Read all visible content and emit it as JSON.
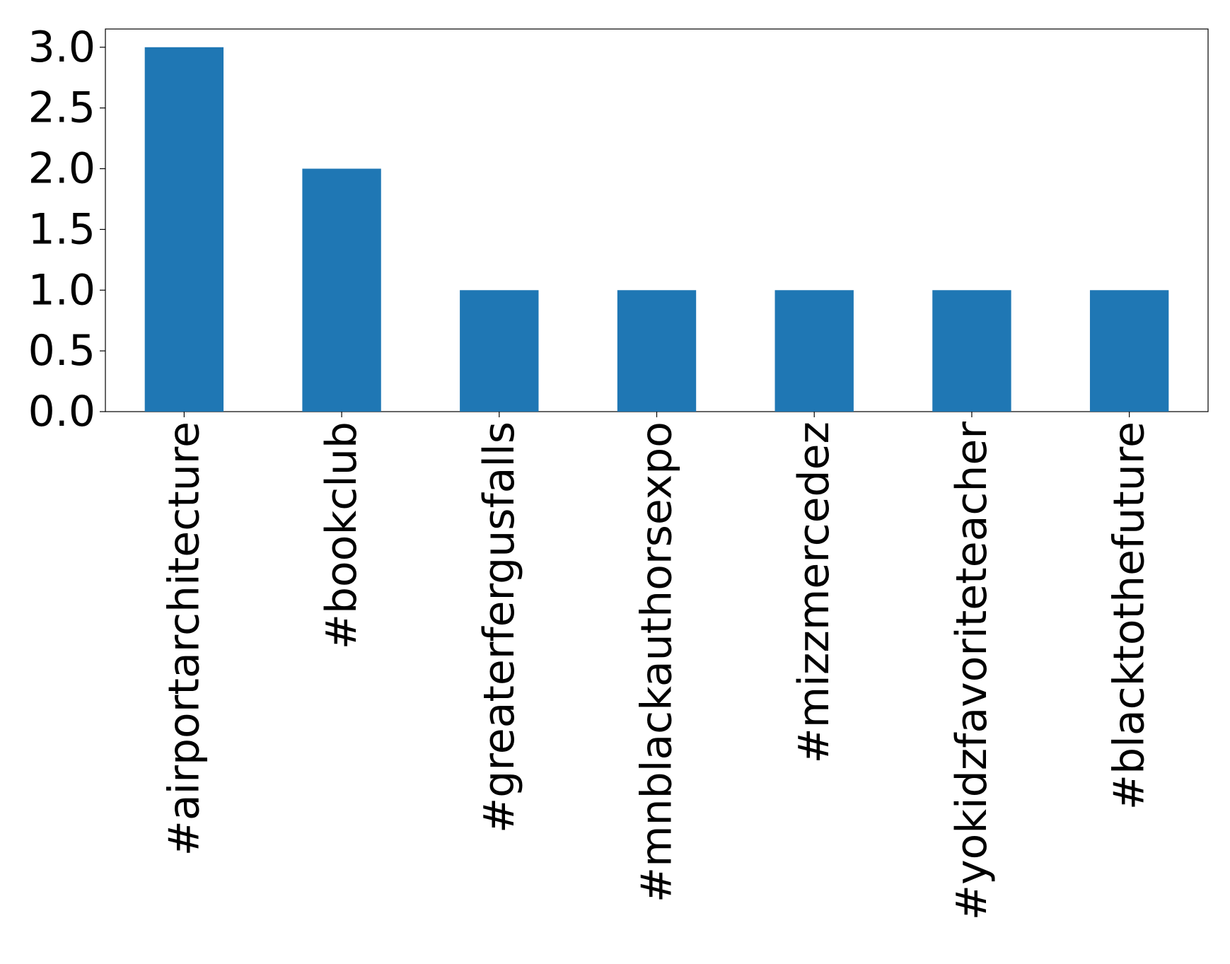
{
  "chart_data": {
    "type": "bar",
    "categories": [
      "#airportarchitecture",
      "#bookclub",
      "#greaterfergusfalls",
      "#mnblackauthorsexpo",
      "#mizzmercedez",
      "#yokidzfavoriteteacher",
      "#blacktothefuture"
    ],
    "values": [
      3,
      2,
      1,
      1,
      1,
      1,
      1
    ],
    "color": "#1f77b4",
    "ylim": [
      0,
      3.15
    ],
    "yticks": [
      {
        "value": 0,
        "label": "0.0"
      },
      0.5,
      {
        "value": 1,
        "label": "1.0"
      },
      1.5,
      {
        "value": 2,
        "label": "2.0"
      },
      2.5,
      {
        "value": 3,
        "label": "3.0"
      }
    ],
    "grid": false
  }
}
